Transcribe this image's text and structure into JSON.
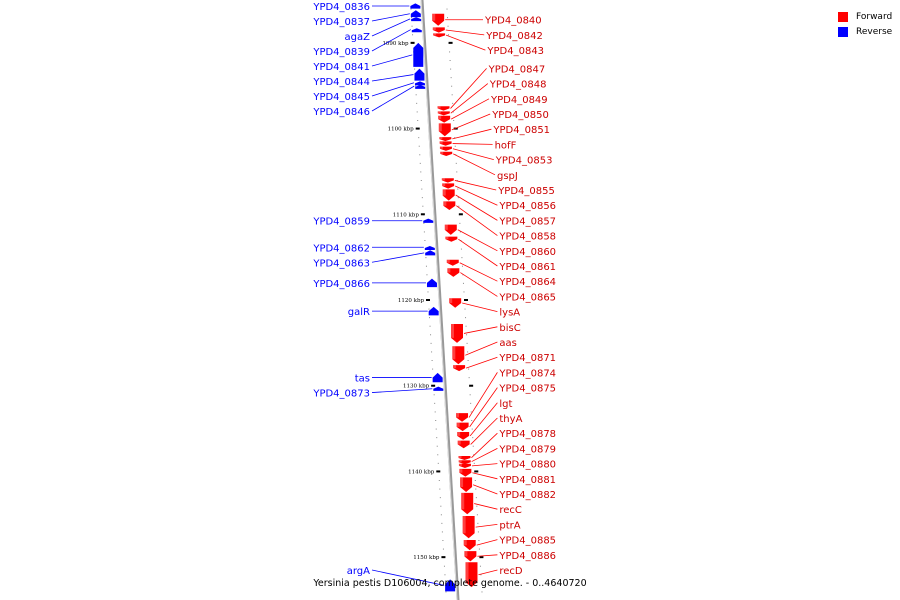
{
  "caption": "Yersinia pestis D106004, complete genome. - 0..4640720",
  "colors": {
    "forward": "#ff0000",
    "reverse": "#0000ff",
    "axis": "#aaaaaa"
  },
  "legend": [
    {
      "label": "Forward",
      "color": "#ff0000"
    },
    {
      "label": "Reverse",
      "color": "#0000ff"
    }
  ],
  "map": {
    "start_kbp": 1085,
    "end_kbp": 1155,
    "ticks": [
      {
        "kbp": 1090,
        "label": "1090 kbp"
      },
      {
        "kbp": 1100,
        "label": "1100 kbp"
      },
      {
        "kbp": 1110,
        "label": "1110 kbp"
      },
      {
        "kbp": 1120,
        "label": "1120 kbp"
      },
      {
        "kbp": 1130,
        "label": "1130 kbp"
      },
      {
        "kbp": 1140,
        "label": "1140 kbp"
      },
      {
        "kbp": 1150,
        "label": "1150 kbp"
      }
    ]
  },
  "reverse_genes": [
    {
      "name": "YPD4_0836",
      "start": 1085.4,
      "end": 1086.0
    },
    {
      "name": "YPD4_0837",
      "start": 1086.2,
      "end": 1087.0
    },
    {
      "name": "agaZ",
      "start": 1087.0,
      "end": 1087.4
    },
    {
      "name": "YPD4_0839",
      "start": 1088.3,
      "end": 1088.6
    },
    {
      "name": "YPD4_0841",
      "start": 1090.0,
      "end": 1092.8
    },
    {
      "name": "YPD4_0844",
      "start": 1093.0,
      "end": 1094.4
    },
    {
      "name": "YPD4_0845",
      "start": 1094.5,
      "end": 1094.8
    },
    {
      "name": "YPD4_0846",
      "start": 1094.9,
      "end": 1095.2
    },
    {
      "name": "YPD4_0859",
      "start": 1110.5,
      "end": 1111.0
    },
    {
      "name": "YPD4_0862",
      "start": 1113.7,
      "end": 1114.0
    },
    {
      "name": "YPD4_0863",
      "start": 1114.2,
      "end": 1114.8
    },
    {
      "name": "YPD4_0866",
      "start": 1117.5,
      "end": 1118.5
    },
    {
      "name": "galR",
      "start": 1120.8,
      "end": 1121.8
    },
    {
      "name": "tas",
      "start": 1128.5,
      "end": 1129.6
    },
    {
      "name": "YPD4_0873",
      "start": 1130.1,
      "end": 1130.6
    },
    {
      "name": "argA",
      "start": 1152.6,
      "end": 1154.0
    }
  ],
  "forward_genes": [
    {
      "name": "YPD4_0840",
      "start": 1086.6,
      "end": 1088.0
    },
    {
      "name": "YPD4_0842",
      "start": 1088.2,
      "end": 1088.8
    },
    {
      "name": "YPD4_0843",
      "start": 1088.9,
      "end": 1089.3
    },
    {
      "name": "YPD4_0847",
      "start": 1097.4,
      "end": 1097.9
    },
    {
      "name": "YPD4_0848",
      "start": 1098.0,
      "end": 1098.4
    },
    {
      "name": "YPD4_0849",
      "start": 1098.5,
      "end": 1099.3
    },
    {
      "name": "YPD4_0850",
      "start": 1099.4,
      "end": 1100.9
    },
    {
      "name": "YPD4_0851",
      "start": 1101.0,
      "end": 1101.4
    },
    {
      "name": "hofF",
      "start": 1101.5,
      "end": 1102.0
    },
    {
      "name": "YPD4_0853",
      "start": 1102.1,
      "end": 1102.6
    },
    {
      "name": "gspJ",
      "start": 1102.7,
      "end": 1103.2
    },
    {
      "name": "YPD4_0855",
      "start": 1105.8,
      "end": 1106.3
    },
    {
      "name": "YPD4_0856",
      "start": 1106.4,
      "end": 1107.0
    },
    {
      "name": "YPD4_0857",
      "start": 1107.1,
      "end": 1108.4
    },
    {
      "name": "YPD4_0858",
      "start": 1108.5,
      "end": 1109.5
    },
    {
      "name": "YPD4_0860",
      "start": 1111.2,
      "end": 1112.4
    },
    {
      "name": "YPD4_0861",
      "start": 1112.6,
      "end": 1113.2
    },
    {
      "name": "YPD4_0864",
      "start": 1115.3,
      "end": 1116.0
    },
    {
      "name": "YPD4_0865",
      "start": 1116.3,
      "end": 1117.3
    },
    {
      "name": "lysA",
      "start": 1119.8,
      "end": 1120.9
    },
    {
      "name": "bisC",
      "start": 1122.8,
      "end": 1125.0
    },
    {
      "name": "aas",
      "start": 1125.4,
      "end": 1127.5
    },
    {
      "name": "YPD4_0871",
      "start": 1127.6,
      "end": 1128.3
    },
    {
      "name": "YPD4_0874",
      "start": 1133.2,
      "end": 1134.2
    },
    {
      "name": "YPD4_0875",
      "start": 1134.3,
      "end": 1135.3
    },
    {
      "name": "lgt",
      "start": 1135.4,
      "end": 1136.3
    },
    {
      "name": "thyA",
      "start": 1136.4,
      "end": 1137.3
    },
    {
      "name": "YPD4_0878",
      "start": 1138.2,
      "end": 1138.6
    },
    {
      "name": "YPD4_0879",
      "start": 1138.7,
      "end": 1139.0
    },
    {
      "name": "YPD4_0880",
      "start": 1139.1,
      "end": 1139.6
    },
    {
      "name": "YPD4_0881",
      "start": 1139.7,
      "end": 1140.6
    },
    {
      "name": "YPD4_0882",
      "start": 1140.7,
      "end": 1142.4
    },
    {
      "name": "recC",
      "start": 1142.5,
      "end": 1145.0
    },
    {
      "name": "ptrA",
      "start": 1145.2,
      "end": 1147.8
    },
    {
      "name": "YPD4_0885",
      "start": 1148.0,
      "end": 1149.2
    },
    {
      "name": "YPD4_0886",
      "start": 1149.3,
      "end": 1150.5
    },
    {
      "name": "recD",
      "start": 1150.6,
      "end": 1153.5
    }
  ]
}
